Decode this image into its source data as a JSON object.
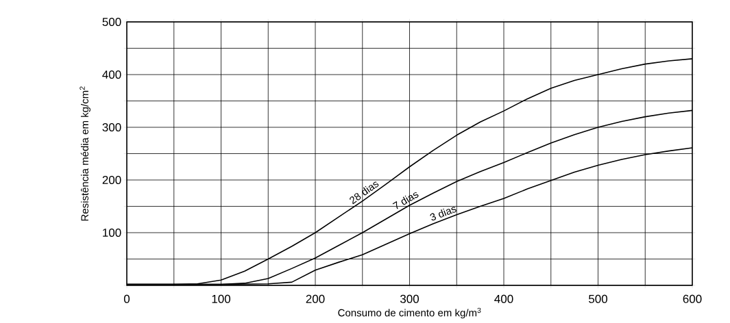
{
  "chart_data": {
    "type": "line",
    "xlabel": "Consumo de cimento em kg/m$^{3}$",
    "ylabel": "Resistência média em kg/cm$^{2}$",
    "x": [
      0,
      50,
      75,
      100,
      125,
      150,
      175,
      200,
      225,
      250,
      275,
      300,
      325,
      350,
      375,
      400,
      425,
      450,
      475,
      500,
      525,
      550,
      575,
      600
    ],
    "series": [
      {
        "name": "28 dias",
        "color": "#000000",
        "values": [
          2,
          2,
          3,
          10,
          27,
          50,
          74,
          100,
          130,
          160,
          192,
          225,
          256,
          285,
          310,
          331,
          354,
          374,
          389,
          400,
          411,
          420,
          426,
          430
        ]
      },
      {
        "name": "7 dias",
        "color": "#000000",
        "x": [
          0,
          50,
          100,
          125,
          150,
          175,
          200,
          225,
          250,
          275,
          300,
          325,
          350,
          375,
          400,
          425,
          450,
          475,
          500,
          525,
          550,
          575,
          600
        ],
        "values": [
          2,
          2,
          2,
          4,
          13,
          32,
          52,
          76,
          100,
          126,
          152,
          175,
          197,
          216,
          233,
          252,
          270,
          286,
          300,
          311,
          320,
          327,
          332
        ]
      },
      {
        "name": "3 dias",
        "color": "#000000",
        "x": [
          0,
          50,
          100,
          150,
          175,
          200,
          225,
          250,
          275,
          300,
          325,
          350,
          375,
          400,
          425,
          450,
          475,
          500,
          525,
          550,
          575,
          600
        ],
        "values": [
          2,
          2,
          2,
          3,
          6,
          29,
          44,
          58,
          78,
          98,
          117,
          134,
          150,
          165,
          183,
          199,
          215,
          228,
          239,
          248,
          255,
          261
        ]
      }
    ],
    "xlim": [
      0,
      600
    ],
    "ylim": [
      0,
      500
    ],
    "xticks": [
      0,
      {
        "value": 50,
        "label": null
      },
      100,
      {
        "value": 150,
        "label": null
      },
      200,
      {
        "value": 250,
        "label": null
      },
      300,
      {
        "value": 350,
        "label": null
      },
      400,
      {
        "value": 450,
        "label": null
      },
      500,
      {
        "value": 550,
        "label": null
      },
      600
    ],
    "yticks": [
      {
        "value": 0,
        "label": null
      },
      {
        "value": 50,
        "label": null
      },
      100,
      {
        "value": 150,
        "label": null
      },
      200,
      {
        "value": 250,
        "label": null
      },
      300,
      {
        "value": 350,
        "label": null
      },
      400,
      {
        "value": 450,
        "label": null
      },
      500
    ],
    "grid": true,
    "legend": false,
    "marker": "none",
    "line_style": "solid"
  }
}
